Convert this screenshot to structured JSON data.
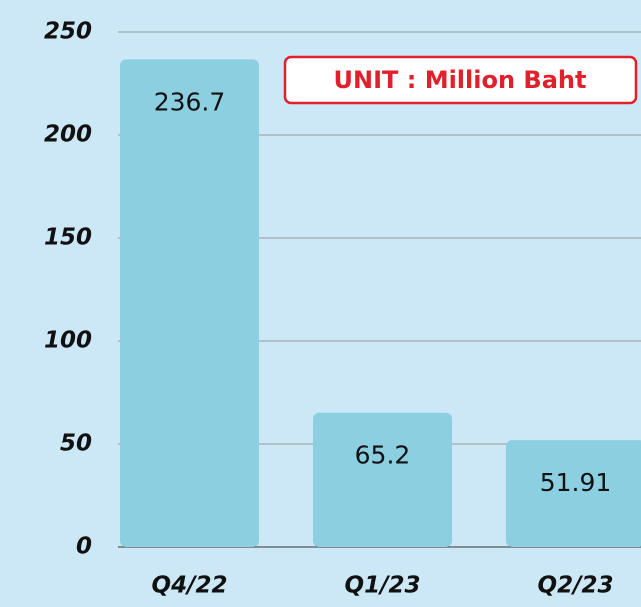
{
  "chart_data": {
    "type": "bar",
    "annotation": "UNIT : Million Baht",
    "categories": [
      "Q4/22",
      "Q1/23",
      "Q2/23"
    ],
    "values": [
      236.7,
      65.2,
      51.91
    ],
    "color": "#8ccfe1",
    "ylim": [
      0,
      250
    ],
    "yticks": [
      0,
      50,
      100,
      150,
      200,
      250
    ],
    "grid": true
  }
}
